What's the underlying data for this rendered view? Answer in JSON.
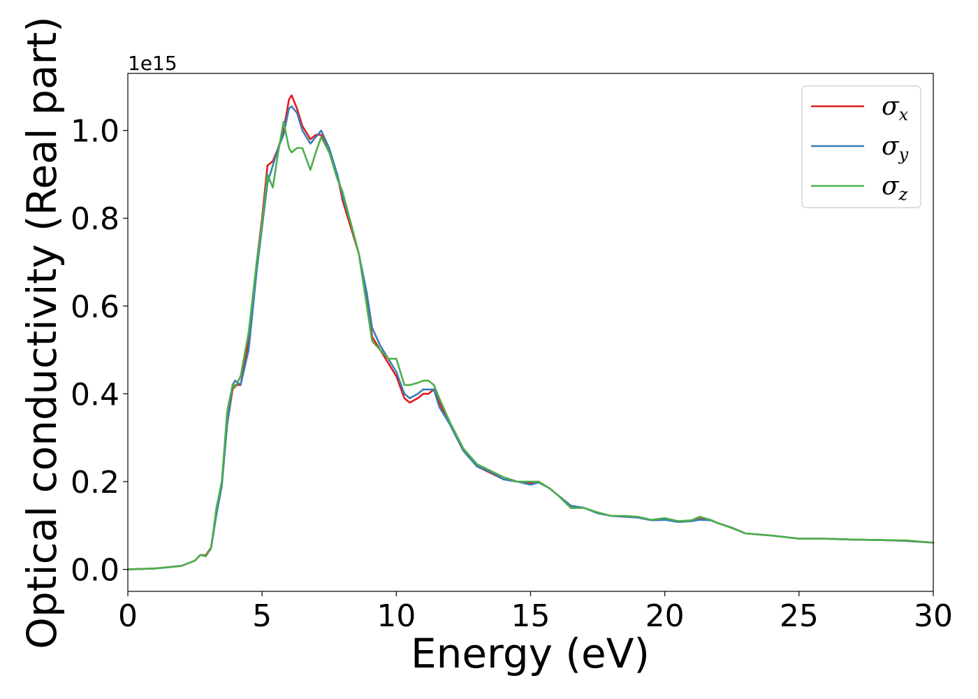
{
  "chart_data": {
    "type": "line",
    "xlabel": "Energy (eV)",
    "ylabel": "Optical conductivity (Real part)",
    "y_offset_text": "1e15",
    "y_multiplier": 1000000000000000.0,
    "xlim": [
      0,
      30
    ],
    "ylim": [
      -0.05,
      1.13
    ],
    "xticks": [
      0,
      5,
      10,
      15,
      20,
      25,
      30
    ],
    "xtick_labels": [
      "0",
      "5",
      "10",
      "15",
      "20",
      "25",
      "30"
    ],
    "yticks": [
      0.0,
      0.2,
      0.4,
      0.6,
      0.8,
      1.0
    ],
    "ytick_labels": [
      "0.0",
      "0.2",
      "0.4",
      "0.6",
      "0.8",
      "1.0"
    ],
    "grid": false,
    "legend_position": "top-right",
    "series": [
      {
        "name": "σ",
        "sub": "x",
        "color": "#e41a1c",
        "x": [
          0,
          1,
          2,
          2.5,
          2.7,
          2.9,
          3.1,
          3.3,
          3.5,
          3.7,
          3.9,
          4.0,
          4.2,
          4.5,
          4.8,
          5.0,
          5.2,
          5.4,
          5.6,
          5.8,
          6.0,
          6.1,
          6.3,
          6.5,
          6.8,
          7.0,
          7.2,
          7.5,
          7.8,
          8.0,
          8.3,
          8.6,
          8.9,
          9.1,
          9.4,
          9.7,
          10.0,
          10.3,
          10.5,
          10.8,
          11.0,
          11.2,
          11.4,
          11.6,
          12.0,
          12.5,
          13.0,
          13.5,
          14.0,
          14.5,
          15.0,
          15.3,
          15.7,
          16.0,
          16.5,
          17.0,
          17.5,
          18.0,
          18.5,
          19.0,
          19.5,
          20.0,
          20.5,
          21.0,
          21.3,
          21.7,
          22.0,
          22.5,
          23.0,
          24.0,
          25.0,
          26.0,
          27.0,
          28.0,
          29.0,
          30.0
        ],
        "y": [
          0.0,
          0.002,
          0.008,
          0.02,
          0.033,
          0.032,
          0.05,
          0.13,
          0.2,
          0.33,
          0.41,
          0.42,
          0.42,
          0.52,
          0.7,
          0.8,
          0.92,
          0.93,
          0.96,
          1.0,
          1.07,
          1.08,
          1.05,
          1.01,
          0.98,
          0.99,
          0.99,
          0.95,
          0.9,
          0.84,
          0.78,
          0.72,
          0.62,
          0.53,
          0.5,
          0.47,
          0.44,
          0.39,
          0.38,
          0.39,
          0.4,
          0.4,
          0.41,
          0.38,
          0.33,
          0.27,
          0.235,
          0.22,
          0.205,
          0.2,
          0.196,
          0.2,
          0.185,
          0.17,
          0.145,
          0.14,
          0.128,
          0.122,
          0.12,
          0.118,
          0.112,
          0.113,
          0.11,
          0.11,
          0.115,
          0.113,
          0.105,
          0.095,
          0.082,
          0.077,
          0.07,
          0.07,
          0.068,
          0.067,
          0.065,
          0.061
        ]
      },
      {
        "name": "σ",
        "sub": "y",
        "color": "#377eb8",
        "x": [
          0,
          1,
          2,
          2.5,
          2.7,
          2.9,
          3.1,
          3.3,
          3.5,
          3.7,
          3.9,
          4.0,
          4.2,
          4.5,
          4.8,
          5.0,
          5.2,
          5.4,
          5.6,
          5.8,
          6.0,
          6.1,
          6.3,
          6.5,
          6.8,
          7.0,
          7.2,
          7.5,
          7.8,
          8.0,
          8.3,
          8.6,
          8.9,
          9.1,
          9.4,
          9.7,
          10.0,
          10.3,
          10.5,
          10.8,
          11.0,
          11.2,
          11.4,
          11.6,
          12.0,
          12.5,
          13.0,
          13.5,
          14.0,
          14.5,
          15.0,
          15.3,
          15.7,
          16.0,
          16.5,
          17.0,
          17.5,
          18.0,
          18.5,
          19.0,
          19.5,
          20.0,
          20.5,
          21.0,
          21.3,
          21.7,
          22.0,
          22.5,
          23.0,
          24.0,
          25.0,
          26.0,
          27.0,
          28.0,
          29.0,
          30.0
        ],
        "y": [
          0.0,
          0.002,
          0.008,
          0.02,
          0.033,
          0.03,
          0.048,
          0.125,
          0.19,
          0.33,
          0.42,
          0.43,
          0.42,
          0.5,
          0.68,
          0.78,
          0.88,
          0.92,
          0.96,
          0.99,
          1.05,
          1.055,
          1.04,
          1.0,
          0.97,
          0.985,
          1.0,
          0.96,
          0.9,
          0.85,
          0.79,
          0.72,
          0.63,
          0.55,
          0.51,
          0.48,
          0.45,
          0.4,
          0.39,
          0.4,
          0.41,
          0.41,
          0.41,
          0.37,
          0.33,
          0.27,
          0.235,
          0.222,
          0.205,
          0.2,
          0.193,
          0.198,
          0.185,
          0.17,
          0.145,
          0.14,
          0.128,
          0.122,
          0.12,
          0.118,
          0.112,
          0.113,
          0.108,
          0.11,
          0.113,
          0.112,
          0.105,
          0.095,
          0.082,
          0.077,
          0.07,
          0.07,
          0.068,
          0.067,
          0.065,
          0.061
        ]
      },
      {
        "name": "σ",
        "sub": "z",
        "color": "#4daf4a",
        "x": [
          0,
          1,
          2,
          2.5,
          2.7,
          2.9,
          3.1,
          3.3,
          3.5,
          3.7,
          3.9,
          4.0,
          4.2,
          4.5,
          4.8,
          5.0,
          5.2,
          5.4,
          5.6,
          5.8,
          6.0,
          6.1,
          6.3,
          6.5,
          6.8,
          7.0,
          7.2,
          7.5,
          7.8,
          8.0,
          8.3,
          8.6,
          8.9,
          9.1,
          9.4,
          9.7,
          10.0,
          10.3,
          10.5,
          10.8,
          11.0,
          11.2,
          11.4,
          11.6,
          12.0,
          12.5,
          13.0,
          13.5,
          14.0,
          14.5,
          15.0,
          15.3,
          15.7,
          16.0,
          16.5,
          17.0,
          17.5,
          18.0,
          18.5,
          19.0,
          19.5,
          20.0,
          20.5,
          21.0,
          21.3,
          21.7,
          22.0,
          22.5,
          23.0,
          24.0,
          25.0,
          26.0,
          27.0,
          28.0,
          29.0,
          30.0
        ],
        "y": [
          0.0,
          0.002,
          0.008,
          0.02,
          0.033,
          0.03,
          0.048,
          0.14,
          0.2,
          0.36,
          0.42,
          0.415,
          0.44,
          0.54,
          0.7,
          0.79,
          0.9,
          0.87,
          0.95,
          1.02,
          0.96,
          0.95,
          0.96,
          0.96,
          0.91,
          0.95,
          0.985,
          0.95,
          0.89,
          0.86,
          0.79,
          0.72,
          0.6,
          0.52,
          0.5,
          0.48,
          0.48,
          0.42,
          0.42,
          0.425,
          0.43,
          0.43,
          0.42,
          0.39,
          0.335,
          0.275,
          0.24,
          0.225,
          0.21,
          0.2,
          0.2,
          0.2,
          0.185,
          0.17,
          0.14,
          0.14,
          0.13,
          0.122,
          0.122,
          0.12,
          0.113,
          0.117,
          0.11,
          0.112,
          0.12,
          0.113,
          0.105,
          0.094,
          0.082,
          0.077,
          0.07,
          0.07,
          0.068,
          0.067,
          0.066,
          0.061
        ]
      }
    ]
  }
}
